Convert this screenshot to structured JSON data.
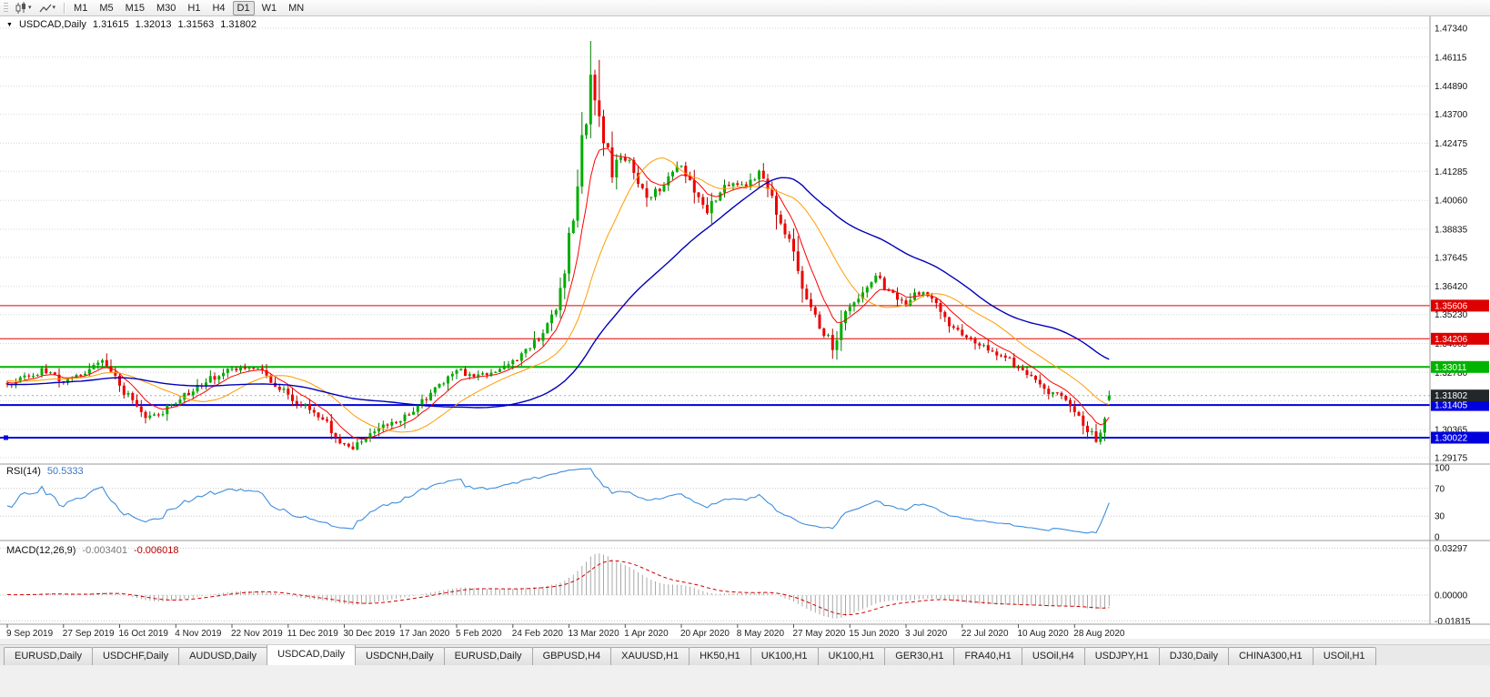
{
  "toolbar": {
    "timeframes": [
      "M1",
      "M5",
      "M15",
      "M30",
      "H1",
      "H4",
      "D1",
      "W1",
      "MN"
    ],
    "active_timeframe": "D1"
  },
  "window": {
    "title": "USDCAD,Daily",
    "ohlc": {
      "open": "1.31615",
      "high": "1.32013",
      "low": "1.31563",
      "close": "1.31802"
    }
  },
  "chart_data": {
    "type": "candlestick",
    "symbol": "USDCAD",
    "period": "Daily",
    "bars_total": 256,
    "bars_per_label": 13,
    "date_labels": [
      "9 Sep 2019",
      "27 Sep 2019",
      "16 Oct 2019",
      "4 Nov 2019",
      "22 Nov 2019",
      "11 Dec 2019",
      "30 Dec 2019",
      "17 Jan 2020",
      "5 Feb 2020",
      "24 Feb 2020",
      "13 Mar 2020",
      "1 Apr 2020",
      "20 Apr 2020",
      "8 May 2020",
      "27 May 2020",
      "15 Jun 2020",
      "3 Jul 2020",
      "22 Jul 2020",
      "10 Aug 2020",
      "28 Aug 2020"
    ],
    "price_axis_labels": [
      "1.47340",
      "1.46115",
      "1.44890",
      "1.43700",
      "1.42475",
      "1.41285",
      "1.40060",
      "1.38835",
      "1.37645",
      "1.36420",
      "1.35230",
      "1.34005",
      "1.32780",
      "1.31590",
      "1.30365",
      "1.29175"
    ],
    "price_axis_top": 1.4734,
    "price_axis_bottom": 1.29175,
    "close_anchors": [
      [
        0,
        1.3225
      ],
      [
        4,
        1.3255
      ],
      [
        8,
        1.3285
      ],
      [
        13,
        1.3245
      ],
      [
        17,
        1.327
      ],
      [
        21,
        1.333
      ],
      [
        24,
        1.329
      ],
      [
        26,
        1.323
      ],
      [
        29,
        1.315
      ],
      [
        33,
        1.308
      ],
      [
        36,
        1.311
      ],
      [
        39,
        1.3155
      ],
      [
        44,
        1.3215
      ],
      [
        48,
        1.326
      ],
      [
        52,
        1.329
      ],
      [
        56,
        1.3305
      ],
      [
        60,
        1.327
      ],
      [
        65,
        1.3175
      ],
      [
        69,
        1.3135
      ],
      [
        73,
        1.3085
      ],
      [
        77,
        1.2975
      ],
      [
        80,
        1.296
      ],
      [
        83,
        1.3
      ],
      [
        87,
        1.305
      ],
      [
        91,
        1.307
      ],
      [
        95,
        1.313
      ],
      [
        99,
        1.321
      ],
      [
        104,
        1.329
      ],
      [
        108,
        1.3255
      ],
      [
        112,
        1.328
      ],
      [
        117,
        1.332
      ],
      [
        120,
        1.337
      ],
      [
        124,
        1.344
      ],
      [
        127,
        1.356
      ],
      [
        129,
        1.372
      ],
      [
        131,
        1.392
      ],
      [
        133,
        1.425
      ],
      [
        135,
        1.45
      ],
      [
        136,
        1.442
      ],
      [
        138,
        1.428
      ],
      [
        140,
        1.412
      ],
      [
        142,
        1.422
      ],
      [
        144,
        1.416
      ],
      [
        146,
        1.408
      ],
      [
        148,
        1.399
      ],
      [
        151,
        1.406
      ],
      [
        154,
        1.412
      ],
      [
        156,
        1.415
      ],
      [
        159,
        1.406
      ],
      [
        162,
        1.397
      ],
      [
        165,
        1.404
      ],
      [
        168,
        1.409
      ],
      [
        171,
        1.407
      ],
      [
        174,
        1.412
      ],
      [
        177,
        1.4
      ],
      [
        180,
        1.387
      ],
      [
        182,
        1.377
      ],
      [
        185,
        1.361
      ],
      [
        188,
        1.347
      ],
      [
        191,
        1.339
      ],
      [
        193,
        1.349
      ],
      [
        195,
        1.356
      ],
      [
        198,
        1.362
      ],
      [
        201,
        1.369
      ],
      [
        203,
        1.364
      ],
      [
        206,
        1.359
      ],
      [
        208,
        1.357
      ],
      [
        211,
        1.362
      ],
      [
        214,
        1.358
      ],
      [
        217,
        1.352
      ],
      [
        220,
        1.344
      ],
      [
        223,
        1.341
      ],
      [
        226,
        1.339
      ],
      [
        229,
        1.336
      ],
      [
        232,
        1.333
      ],
      [
        235,
        1.329
      ],
      [
        238,
        1.324
      ],
      [
        241,
        1.32
      ],
      [
        244,
        1.317
      ],
      [
        247,
        1.312
      ],
      [
        250,
        1.304
      ],
      [
        252,
        1.3
      ],
      [
        253,
        1.305
      ],
      [
        254,
        1.312
      ],
      [
        255,
        1.31802
      ]
    ],
    "last_bar": {
      "open": 1.31615,
      "high": 1.32013,
      "low": 1.31563,
      "close": 1.31802
    },
    "extreme_high": 1.468,
    "recent_low": 1.2992,
    "december_low": 1.295,
    "levels": [
      {
        "value": 1.35606,
        "label": "1.35606",
        "color": "#dd0000",
        "width": 1
      },
      {
        "value": 1.34206,
        "label": "1.34206",
        "color": "#dd0000",
        "width": 1
      },
      {
        "value": 1.33011,
        "label": "1.33011",
        "color": "#00b400",
        "width": 2
      },
      {
        "value": 1.31405,
        "label": "1.31405",
        "color": "#0000dd",
        "width": 2
      },
      {
        "value": 1.30022,
        "label": "1.30022",
        "color": "#0000dd",
        "width": 2,
        "handle": true
      }
    ],
    "current_price": {
      "value": 1.31802,
      "label": "1.31802",
      "badge_color": "#23272b"
    },
    "moving_averages": [
      {
        "name": "fast-ma",
        "type": "ema",
        "period": 8,
        "color": "#ff0000"
      },
      {
        "name": "medium-ma",
        "type": "sma",
        "period": 20,
        "color": "#ff9c00"
      },
      {
        "name": "slow-ma",
        "type": "sma",
        "period": 50,
        "color": "#0000bb"
      }
    ],
    "candle_up_color": "#00ad00",
    "candle_up_wick": "#007d00",
    "candle_down_color": "#ee0000",
    "candle_down_wick": "#b40000",
    "indicators": {
      "rsi": {
        "label": "RSI(14)",
        "value": "50.5333",
        "period": 14,
        "color": "#3e8ede",
        "axis_labels": [
          "100",
          "70",
          "30",
          "0"
        ],
        "dotted_levels": [
          70,
          30
        ],
        "range": [
          0,
          100
        ]
      },
      "macd": {
        "label": "MACD(12,26,9)",
        "value": "-0.003401",
        "signal_value": "-0.006018",
        "fast": 12,
        "slow": 26,
        "signal": 9,
        "axis_labels": [
          "0.03297",
          "0.00000",
          "-0.01815"
        ],
        "range": [
          -0.01815,
          0.03297
        ],
        "histogram_color": "#a8a8a8",
        "signal_color": "#d40000"
      }
    }
  },
  "tabs": {
    "items": [
      "EURUSD,Daily",
      "USDCHF,Daily",
      "AUDUSD,Daily",
      "USDCAD,Daily",
      "USDCNH,Daily",
      "EURUSD,Daily",
      "GBPUSD,H4",
      "XAUUSD,H1",
      "HK50,H1",
      "UK100,H1",
      "UK100,H1",
      "GER30,H1",
      "FRA40,H1",
      "USOil,H4",
      "USDJPY,H1",
      "DJ30,Daily",
      "CHINA300,H1",
      "USOil,H1"
    ],
    "active_index": 3
  }
}
